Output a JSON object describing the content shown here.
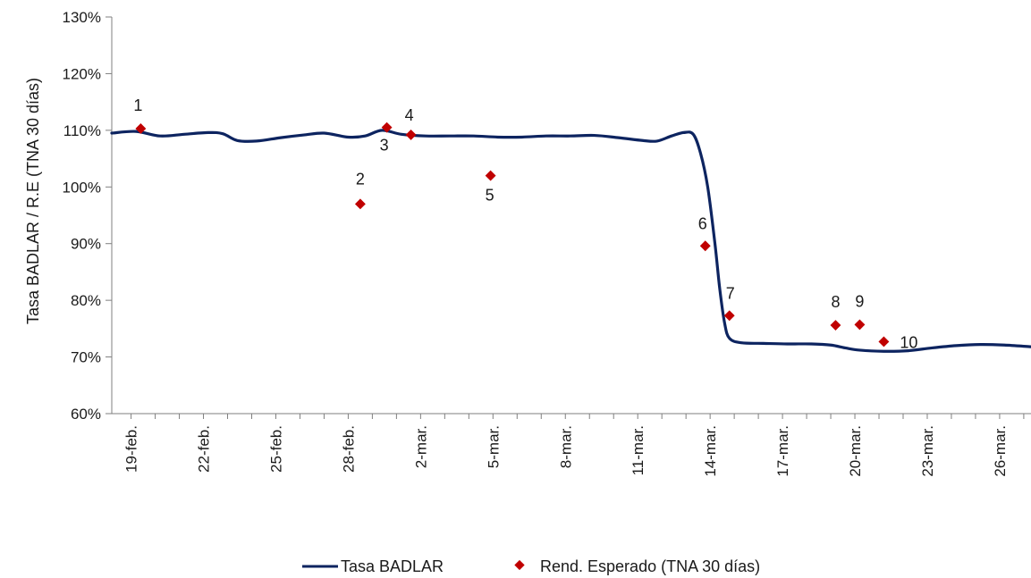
{
  "chart_data": {
    "type": "line",
    "title": "",
    "xlabel": "",
    "ylabel": "Tasa BADLAR / R.E (TNA 30 días)",
    "ylim": [
      60,
      130
    ],
    "yticks": [
      "60%",
      "70%",
      "80%",
      "90%",
      "100%",
      "110%",
      "120%",
      "130%"
    ],
    "xlim": [
      18.2,
      56.3
    ],
    "xticks": [
      {
        "label": "19-feb.",
        "day": 19
      },
      {
        "label": "22-feb.",
        "day": 22
      },
      {
        "label": "25-feb.",
        "day": 25
      },
      {
        "label": "28-feb.",
        "day": 28
      },
      {
        "label": "2-mar.",
        "day": 31
      },
      {
        "label": "5-mar.",
        "day": 34
      },
      {
        "label": "8-mar.",
        "day": 37
      },
      {
        "label": "11-mar.",
        "day": 40
      },
      {
        "label": "14-mar.",
        "day": 43
      },
      {
        "label": "17-mar.",
        "day": 46
      },
      {
        "label": "20-mar.",
        "day": 49
      },
      {
        "label": "23-mar.",
        "day": 52
      },
      {
        "label": "26-mar.",
        "day": 55
      }
    ],
    "grid": false,
    "legend_position": "bottom",
    "series": [
      {
        "name": "Tasa BADLAR",
        "type": "line",
        "color": "#0d2460",
        "points": [
          [
            18.2,
            109.5
          ],
          [
            19.2,
            109.8
          ],
          [
            20.2,
            109.0
          ],
          [
            21.2,
            109.3
          ],
          [
            22.2,
            109.6
          ],
          [
            22.8,
            109.4
          ],
          [
            23.4,
            108.2
          ],
          [
            24.2,
            108.1
          ],
          [
            25.2,
            108.7
          ],
          [
            26.2,
            109.2
          ],
          [
            27.0,
            109.5
          ],
          [
            28.0,
            108.8
          ],
          [
            28.7,
            109.0
          ],
          [
            29.4,
            110.0
          ],
          [
            30.2,
            109.3
          ],
          [
            31.2,
            109.0
          ],
          [
            32.2,
            109.0
          ],
          [
            33.2,
            109.0
          ],
          [
            34.2,
            108.8
          ],
          [
            35.2,
            108.8
          ],
          [
            36.2,
            109.0
          ],
          [
            37.2,
            109.0
          ],
          [
            38.2,
            109.1
          ],
          [
            39.2,
            108.7
          ],
          [
            40.2,
            108.2
          ],
          [
            40.8,
            108.1
          ],
          [
            41.4,
            109.0
          ],
          [
            41.9,
            109.6
          ],
          [
            42.3,
            109.3
          ],
          [
            42.6,
            106.0
          ],
          [
            42.9,
            100.0
          ],
          [
            43.2,
            90.0
          ],
          [
            43.4,
            82.0
          ],
          [
            43.6,
            76.0
          ],
          [
            43.8,
            73.3
          ],
          [
            44.3,
            72.5
          ],
          [
            45.2,
            72.4
          ],
          [
            46.2,
            72.3
          ],
          [
            47.2,
            72.3
          ],
          [
            48.0,
            72.1
          ],
          [
            48.6,
            71.6
          ],
          [
            49.2,
            71.2
          ],
          [
            50.2,
            71.0
          ],
          [
            51.2,
            71.1
          ],
          [
            52.2,
            71.6
          ],
          [
            53.2,
            72.0
          ],
          [
            54.2,
            72.2
          ],
          [
            55.2,
            72.1
          ],
          [
            56.3,
            71.8
          ]
        ]
      },
      {
        "name": "Rend. Esperado (TNA 30 días)",
        "type": "scatter",
        "color": "#c00000",
        "points": [
          {
            "label": "1",
            "day": 19.4,
            "y": 110.3
          },
          {
            "label": "2",
            "day": 28.5,
            "y": 97.0
          },
          {
            "label": "3",
            "day": 29.6,
            "y": 110.5
          },
          {
            "label": "4",
            "day": 30.6,
            "y": 109.2
          },
          {
            "label": "5",
            "day": 33.9,
            "y": 102.0
          },
          {
            "label": "6",
            "day": 42.8,
            "y": 89.6
          },
          {
            "label": "7",
            "day": 43.8,
            "y": 77.3
          },
          {
            "label": "8",
            "day": 48.2,
            "y": 75.6
          },
          {
            "label": "9",
            "day": 49.2,
            "y": 75.7
          },
          {
            "label": "10",
            "day": 50.2,
            "y": 72.7
          }
        ]
      }
    ]
  }
}
